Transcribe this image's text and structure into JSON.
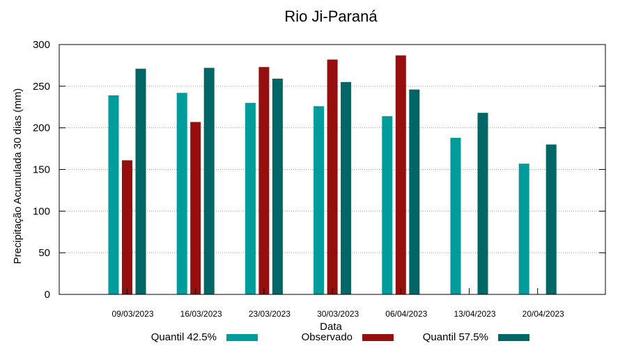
{
  "chart_data": {
    "type": "bar",
    "title": "Rio Ji-Paraná",
    "xlabel": "Data",
    "ylabel": "Precipitação Acumulada 30 dias (mm)",
    "ylim": [
      0,
      300
    ],
    "yticks": [
      0,
      50,
      100,
      150,
      200,
      250,
      300
    ],
    "grid": true,
    "legend_position": "bottom",
    "categories": [
      "09/03/2023",
      "16/03/2023",
      "23/03/2023",
      "30/03/2023",
      "06/04/2023",
      "13/04/2023",
      "20/04/2023"
    ],
    "series": [
      {
        "name": "Quantil 42.5%",
        "color": "#009b9b",
        "values": [
          239,
          242,
          230,
          226,
          214,
          188,
          157
        ]
      },
      {
        "name": "Observado",
        "color": "#950f0f",
        "values": [
          161,
          207,
          273,
          282,
          287,
          null,
          null
        ]
      },
      {
        "name": "Quantil 57.5%",
        "color": "#006666",
        "values": [
          271,
          272,
          259,
          255,
          246,
          218,
          180
        ]
      }
    ]
  }
}
